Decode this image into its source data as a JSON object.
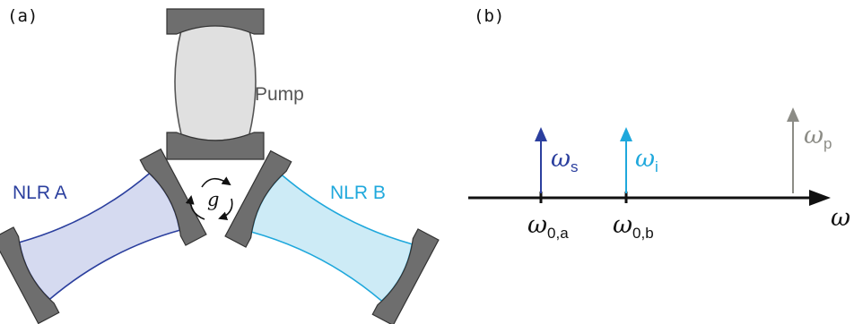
{
  "panels": {
    "a": "(a)",
    "b": "(b)"
  },
  "resonators": {
    "pump": {
      "label": "Pump"
    },
    "nlr_a": {
      "label": "NLR A"
    },
    "nlr_b": {
      "label": "NLR B"
    }
  },
  "coupling": {
    "symbol": "g"
  },
  "spectrum": {
    "axis_symbol": "ω",
    "ticks": [
      {
        "symbol": "ω",
        "sub": "0,a"
      },
      {
        "symbol": "ω",
        "sub": "0,b"
      }
    ],
    "arrows": {
      "signal": {
        "symbol": "ω",
        "sub": "s"
      },
      "idler": {
        "symbol": "ω",
        "sub": "i"
      },
      "pump": {
        "symbol": "ω",
        "sub": "p"
      }
    }
  },
  "colors": {
    "nlr_a_stroke": "#2b3f9e",
    "nlr_a_fill": "#d5daf0",
    "nlr_b_stroke": "#1fa8dc",
    "nlr_b_fill": "#cdebf6",
    "pump_stroke": "#555555",
    "pump_fill": "#e0e0e0",
    "mirror": "#6e6e6e",
    "pump_arrow": "#8c8c86"
  }
}
